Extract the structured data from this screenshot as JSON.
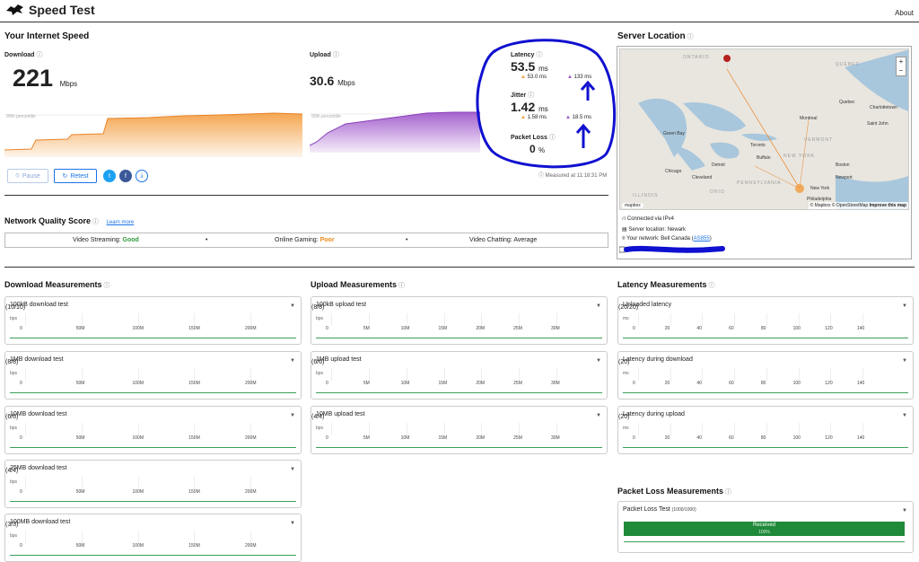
{
  "app": {
    "title": "Speed Test",
    "about": "About"
  },
  "your_speed": {
    "heading": "Your Internet Speed",
    "download": {
      "label": "Download",
      "value": "221",
      "unit": "Mbps",
      "pct_label": "90th percentile"
    },
    "upload": {
      "label": "Upload",
      "value": "30.6",
      "unit": "Mbps",
      "pct_label": "90th percentile"
    },
    "latency": {
      "label": "Latency",
      "value": "53.5",
      "unit": "ms",
      "down": "53.0 ms",
      "up": "133 ms"
    },
    "jitter": {
      "label": "Jitter",
      "value": "1.42",
      "unit": "ms",
      "down": "1.58 ms",
      "up": "18.5 ms"
    },
    "packet_loss": {
      "label": "Packet Loss",
      "value": "0",
      "unit": "%"
    },
    "measured_at": "Measured at 11:18:31 PM",
    "buttons": {
      "pause": "Pause",
      "retest": "Retest"
    }
  },
  "network_quality": {
    "heading": "Network Quality Score",
    "learn_more": "Learn more",
    "video_streaming_label": "Video Streaming:",
    "video_streaming": "Good",
    "online_gaming_label": "Online Gaming:",
    "online_gaming": "Poor",
    "video_chatting_label": "Video Chatting:",
    "video_chatting": "Average",
    "colors": {
      "good": "#2e9b3e",
      "poor": "#e88a17",
      "average": "#333333"
    }
  },
  "server": {
    "heading": "Server Location",
    "connected": "Connected via IPv4",
    "location": "Server location: Newark",
    "network_prefix": "Your network: Bell Canada (",
    "network_link": "AS855",
    "network_suffix": ")",
    "map": {
      "labels": [
        "ONTARIO",
        "QUEBEC",
        "Quebec",
        "Charlottetown",
        "Saint John",
        "Montreal",
        "VERMONT",
        "Toronto",
        "Buffalo",
        "Boston",
        "Green Bay",
        "Detroit",
        "Chicago",
        "Cleveland",
        "PENNSYLVANIA",
        "New York",
        "Philadelphia",
        "Newport",
        "OHIO",
        "ILLINOIS",
        "NEW YORK"
      ],
      "zoom_in": "+",
      "zoom_out": "−",
      "attribution": "© Mapbox © OpenStreetMap",
      "improve": "Improve this map",
      "logo": "mapbox"
    }
  },
  "download_measurements": {
    "heading": "Download Measurements",
    "axis_unit": "bps",
    "ticks": [
      "0",
      "50M",
      "100M",
      "150M",
      "200M"
    ],
    "tests": [
      {
        "name": "100kB download test",
        "count": "(10/10)"
      },
      {
        "name": "1MB download test",
        "count": "(8/8)"
      },
      {
        "name": "10MB download test",
        "count": "(6/6)"
      },
      {
        "name": "25MB download test",
        "count": "(4/4)"
      },
      {
        "name": "100MB download test",
        "count": "(3/3)"
      }
    ]
  },
  "upload_measurements": {
    "heading": "Upload Measurements",
    "axis_unit": "bps",
    "ticks": [
      "0",
      "5M",
      "10M",
      "15M",
      "20M",
      "25M",
      "30M"
    ],
    "tests": [
      {
        "name": "100kB upload test",
        "count": "(8/8)"
      },
      {
        "name": "1MB upload test",
        "count": "(6/6)"
      },
      {
        "name": "10MB upload test",
        "count": "(4/4)"
      }
    ]
  },
  "latency_measurements": {
    "heading": "Latency Measurements",
    "axis_unit": "ms",
    "ticks": [
      "0",
      "20",
      "40",
      "60",
      "80",
      "100",
      "120",
      "140"
    ],
    "tests": [
      {
        "name": "Unloaded latency",
        "count": "(20/20)"
      },
      {
        "name": "Latency during download",
        "count": "(20)"
      },
      {
        "name": "Latency during upload",
        "count": "(20)"
      }
    ]
  },
  "packet_loss_measurements": {
    "heading": "Packet Loss Measurements",
    "test_name": "Packet Loss Test",
    "count": "(1000/1000)",
    "bar_label": "Received",
    "bar_value": "100%",
    "received_fraction": 1.0
  },
  "colors": {
    "download": "#f39c3d",
    "upload": "#9b51c8",
    "accent": "#1a73e8",
    "annotation": "#1010d0"
  }
}
